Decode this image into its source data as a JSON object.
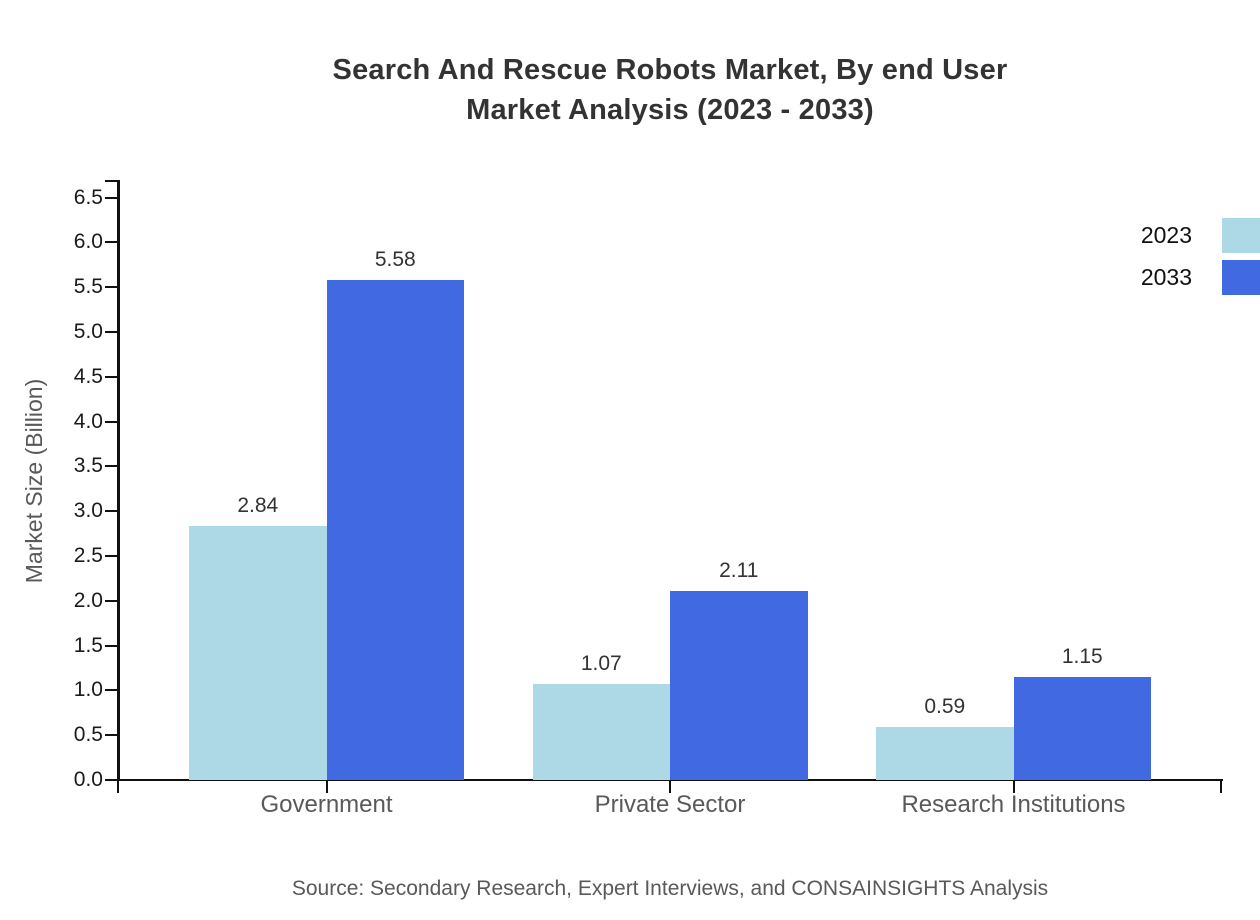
{
  "title": {
    "line1": "Search And Rescue Robots Market, By end User",
    "line2": "Market Analysis (2023 - 2033)"
  },
  "chart_data": {
    "type": "bar",
    "categories": [
      "Government",
      "Private Sector",
      "Research Institutions"
    ],
    "series": [
      {
        "name": "2023",
        "color": "#ADD8E6",
        "values": [
          2.84,
          1.07,
          0.59
        ]
      },
      {
        "name": "2033",
        "color": "#4169E1",
        "values": [
          5.58,
          2.11,
          1.15
        ]
      }
    ],
    "ylabel": "Market Size (Billion)",
    "ylim": [
      0,
      6.5
    ],
    "ytick_step": 0.5,
    "value_labels": true,
    "grid": false,
    "legend_position": "top-right"
  },
  "source": "Source: Secondary Research, Expert Interviews, and CONSAINSIGHTS Analysis",
  "colors": {
    "axis": "#111111",
    "title_text": "#333333",
    "tick_label_text": "#1a1a1a",
    "muted_text": "#595959",
    "background": "#ffffff"
  }
}
